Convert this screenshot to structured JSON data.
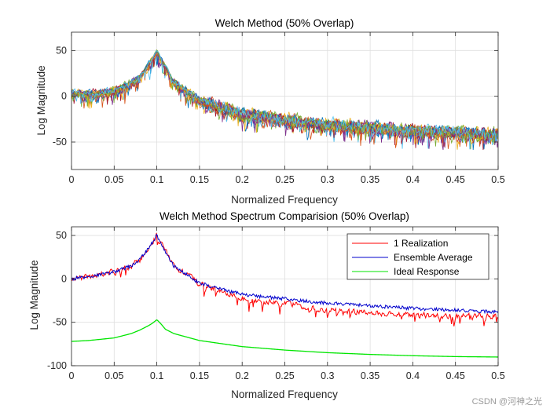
{
  "watermark": "CSDN @河神之光",
  "chart_data": [
    {
      "type": "line",
      "title": "Welch Method (50% Overlap)",
      "xlabel": "Normalized Frequency",
      "ylabel": "Log Magnitude",
      "xlim": [
        0,
        0.5
      ],
      "ylim": [
        -80,
        70
      ],
      "xticks": [
        0,
        0.05,
        0.1,
        0.15,
        0.2,
        0.25,
        0.3,
        0.35,
        0.4,
        0.45,
        0.5
      ],
      "xtick_labels": [
        "0",
        "0.05",
        "0.1",
        "0.15",
        "0.2",
        "0.25",
        "0.3",
        "0.35",
        "0.4",
        "0.45",
        "0.5"
      ],
      "yticks": [
        -50,
        0,
        50
      ],
      "ytick_labels": [
        "-50",
        "0",
        "50"
      ],
      "grid": true,
      "realizations": 20,
      "colors": [
        "#0072bd",
        "#d95319",
        "#edb120",
        "#7e2f8e",
        "#77ac30",
        "#4dbeee",
        "#a2142f"
      ],
      "envelope": {
        "x": [
          0,
          0.03,
          0.06,
          0.08,
          0.09,
          0.1,
          0.11,
          0.12,
          0.15,
          0.2,
          0.3,
          0.4,
          0.5
        ],
        "y": [
          2,
          2,
          8,
          20,
          34,
          48,
          32,
          15,
          -5,
          -20,
          -32,
          -38,
          -42
        ]
      }
    },
    {
      "type": "line",
      "title": "Welch Method Spectrum Comparision (50% Overlap)",
      "xlabel": "Normalized Frequency",
      "ylabel": "Log Magnitude",
      "xlim": [
        0,
        0.5
      ],
      "ylim": [
        -100,
        60
      ],
      "xticks": [
        0,
        0.05,
        0.1,
        0.15,
        0.2,
        0.25,
        0.3,
        0.35,
        0.4,
        0.45,
        0.5
      ],
      "xtick_labels": [
        "0",
        "0.05",
        "0.1",
        "0.15",
        "0.2",
        "0.25",
        "0.3",
        "0.35",
        "0.4",
        "0.45",
        "0.5"
      ],
      "yticks": [
        -100,
        -50,
        0,
        50
      ],
      "ytick_labels": [
        "-100",
        "-50",
        "0",
        "50"
      ],
      "grid": true,
      "legend_position": "top-right",
      "series": [
        {
          "name": "1 Realization",
          "color": "#ff0000",
          "x": [
            0,
            0.03,
            0.05,
            0.07,
            0.08,
            0.09,
            0.1,
            0.11,
            0.12,
            0.15,
            0.2,
            0.3,
            0.4,
            0.5
          ],
          "y": [
            0,
            4,
            8,
            15,
            22,
            35,
            50,
            32,
            15,
            -5,
            -22,
            -35,
            -42,
            -43
          ]
        },
        {
          "name": "Ensemble Average",
          "color": "#0000cc",
          "x": [
            0,
            0.03,
            0.05,
            0.07,
            0.08,
            0.09,
            0.1,
            0.11,
            0.12,
            0.15,
            0.2,
            0.3,
            0.4,
            0.5
          ],
          "y": [
            0,
            4,
            8,
            15,
            22,
            35,
            50,
            32,
            15,
            -5,
            -18,
            -28,
            -34,
            -38
          ]
        },
        {
          "name": "Ideal Response",
          "color": "#00e600",
          "x": [
            0,
            0.02,
            0.05,
            0.07,
            0.08,
            0.09,
            0.095,
            0.1,
            0.105,
            0.11,
            0.12,
            0.15,
            0.2,
            0.25,
            0.3,
            0.35,
            0.4,
            0.45,
            0.5
          ],
          "y": [
            -72,
            -71,
            -68,
            -63,
            -59,
            -54,
            -51,
            -47,
            -52,
            -58,
            -63,
            -71,
            -78,
            -82,
            -85,
            -87,
            -88.5,
            -89.5,
            -90
          ]
        }
      ]
    }
  ]
}
